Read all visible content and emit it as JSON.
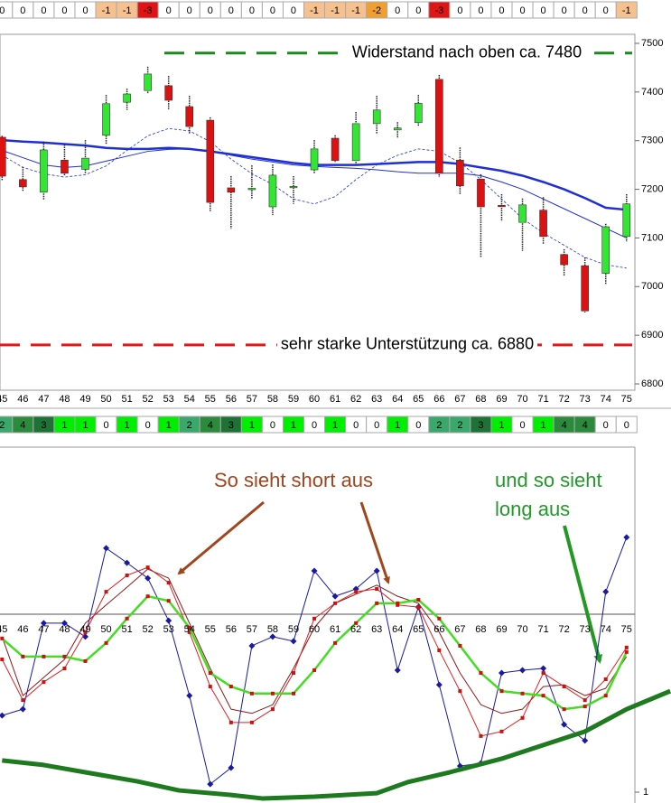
{
  "chart_data": [
    {
      "type": "heatrow",
      "values": [
        0,
        0,
        0,
        0,
        0,
        -1,
        -1,
        -3,
        0,
        0,
        0,
        0,
        0,
        0,
        0,
        -1,
        -1,
        -1,
        -2,
        0,
        0,
        -3,
        0,
        0,
        0,
        0,
        0,
        0,
        0,
        0,
        -1
      ],
      "level_colors": {
        "0": "#ffffff",
        "-1": "#f6c18e",
        "-2": "#f0a030",
        "-3": "#e01414"
      }
    },
    {
      "type": "candlestick",
      "x": [
        45,
        46,
        47,
        48,
        49,
        50,
        51,
        52,
        53,
        54,
        55,
        56,
        57,
        58,
        59,
        60,
        61,
        62,
        63,
        64,
        65,
        66,
        67,
        68,
        69,
        70,
        71,
        72,
        73,
        74,
        75
      ],
      "xlim": [
        44.9,
        75.4
      ],
      "open": [
        7307,
        7220,
        7194,
        7260,
        7241,
        7311,
        7379,
        7403,
        7413,
        7370,
        7342,
        7203,
        7200,
        7164,
        7204,
        7240,
        7305,
        7259,
        7335,
        7322,
        7337,
        7426,
        7260,
        7221,
        7167,
        7132,
        7157,
        7066,
        7043,
        7027,
        7103
      ],
      "close": [
        7227,
        7205,
        7281,
        7233,
        7264,
        7376,
        7396,
        7437,
        7383,
        7329,
        7173,
        7194,
        7202,
        7229,
        7206,
        7283,
        7259,
        7335,
        7363,
        7326,
        7377,
        7233,
        7207,
        7164,
        7165,
        7168,
        7103,
        7045,
        6950,
        7123,
        7170
      ],
      "high": [
        7310,
        7246,
        7298,
        7292,
        7301,
        7394,
        7407,
        7452,
        7433,
        7392,
        7348,
        7227,
        7249,
        7251,
        7227,
        7301,
        7311,
        7359,
        7392,
        7338,
        7394,
        7435,
        7286,
        7231,
        7190,
        7181,
        7184,
        7077,
        7060,
        7129,
        7190
      ],
      "low": [
        7218,
        7196,
        7179,
        7227,
        7233,
        7292,
        7363,
        7396,
        7363,
        7314,
        7155,
        7119,
        7181,
        7147,
        7170,
        7233,
        7255,
        7251,
        7314,
        7305,
        7329,
        7225,
        7190,
        7060,
        7134,
        7073,
        7088,
        7021,
        6947,
        7004,
        7092
      ],
      "up_color": "#33e633",
      "down_color": "#dd1111",
      "ylim": [
        6800,
        7500
      ],
      "yticks": [
        6800,
        6900,
        7000,
        7100,
        7200,
        7300,
        7400,
        7500
      ],
      "lines": [
        {
          "color": "#1f2fd6",
          "width": 2.5,
          "values": [
            7301,
            7298,
            7296,
            7293,
            7290,
            7285,
            7283,
            7283,
            7285,
            7283,
            7278,
            7272,
            7266,
            7260,
            7254,
            7250,
            7250,
            7250,
            7252,
            7254,
            7256,
            7256,
            7252,
            7245,
            7238,
            7228,
            7215,
            7200,
            7182,
            7162,
            7158
          ]
        },
        {
          "color": "#1f2fd6",
          "width": 1,
          "values": [
            7280,
            7265,
            7250,
            7245,
            7248,
            7258,
            7268,
            7278,
            7282,
            7283,
            7280,
            7270,
            7262,
            7256,
            7250,
            7247,
            7245,
            7243,
            7240,
            7236,
            7233,
            7233,
            7233,
            7228,
            7215,
            7200,
            7180,
            7160,
            7140,
            7120,
            7100
          ]
        },
        {
          "color": "#1f2fd6",
          "width": 0.8,
          "dash": true,
          "values": [
            7270,
            7245,
            7232,
            7225,
            7230,
            7248,
            7280,
            7310,
            7325,
            7320,
            7298,
            7262,
            7232,
            7210,
            7180,
            7170,
            7185,
            7220,
            7250,
            7270,
            7283,
            7278,
            7255,
            7220,
            7180,
            7140,
            7110,
            7085,
            7060,
            7045,
            7038
          ]
        }
      ],
      "annotations": [
        {
          "text": "Widerstand nach oben ca. 7480",
          "value": 7480,
          "color": "#1a8a1a"
        },
        {
          "text": "sehr starke Unterstützung ca. 6880",
          "value": 6880,
          "color": "#e01818"
        }
      ]
    },
    {
      "type": "heatrow",
      "values": [
        2,
        4,
        3,
        1,
        1,
        0,
        1,
        0,
        1,
        2,
        4,
        3,
        1,
        0,
        1,
        0,
        1,
        0,
        0,
        1,
        0,
        2,
        2,
        3,
        1,
        0,
        1,
        4,
        4,
        0,
        0
      ],
      "level_colors": {
        "0": "#ffffff",
        "1": "#00ee00",
        "2": "#3aa86a",
        "3": "#1f7236",
        "4": "#2b8a3c"
      }
    },
    {
      "type": "line",
      "x": [
        45,
        46,
        47,
        48,
        49,
        50,
        51,
        52,
        53,
        54,
        55,
        56,
        57,
        58,
        59,
        60,
        61,
        62,
        63,
        64,
        65,
        66,
        67,
        68,
        69,
        70,
        71,
        72,
        73,
        74,
        75
      ],
      "xlim": [
        44.9,
        75.4
      ],
      "ylim": [
        1,
        100
      ],
      "yticks": [
        1
      ],
      "series": [
        {
          "color": "#1a1aa0",
          "width": 1,
          "marker": "diamond",
          "values": [
            23,
            24.8,
            49.5,
            49.5,
            45.6,
            71,
            66.8,
            62.4,
            50.2,
            28.7,
            3.3,
            8,
            43,
            45.6,
            44.3,
            64.5,
            57.2,
            59.3,
            64.5,
            36,
            54.1,
            31.8,
            8.5,
            9.3,
            35.2,
            36,
            36.5,
            20.4,
            15.8,
            58.5,
            74.1
          ]
        },
        {
          "color": "#8b1a1a",
          "width": 1,
          "values": [
            45.6,
            28.7,
            33.9,
            39.1,
            49.5,
            54.7,
            59.8,
            65,
            62.4,
            49.5,
            36.5,
            24.8,
            23.6,
            26.1,
            36.5,
            48.2,
            55.2,
            57.8,
            60.4,
            57.2,
            55.2,
            46.9,
            35.2,
            26.1,
            23.6,
            24.8,
            31.3,
            31.8,
            28.7,
            30.8,
            39.9
          ]
        },
        {
          "color": "#dd2222",
          "width": 1,
          "marker": "square",
          "values": [
            39.1,
            27.4,
            32.6,
            36.5,
            46.9,
            58.5,
            63.2,
            65.5,
            61.1,
            46.9,
            31.3,
            21,
            21,
            24.8,
            35.2,
            50.8,
            55.2,
            58.5,
            59.3,
            54.7,
            54.1,
            41.7,
            30,
            17.1,
            18.4,
            22.3,
            35.2,
            31.3,
            27.4,
            33.4,
            42.5
          ]
        },
        {
          "color": "#44dd22",
          "width": 2.5,
          "marker": "square",
          "values": [
            45.1,
            39.9,
            39.9,
            39.9,
            38.6,
            43.8,
            50.8,
            57.2,
            55.9,
            48.2,
            35.2,
            31.3,
            29.3,
            29.3,
            29.3,
            36,
            43.8,
            49.5,
            55.2,
            55.2,
            56.2,
            50.8,
            43,
            35.2,
            30,
            29.3,
            28.7,
            24.8,
            25.6,
            28.7,
            41.2
          ]
        },
        {
          "color": "#1e7a1e",
          "width": 5,
          "x": [
            45,
            47,
            49,
            51.5,
            53.5,
            56,
            57.5,
            60,
            63,
            64.5,
            66.5,
            69,
            71,
            73,
            75,
            77.1
          ],
          "values": [
            10.1,
            8.8,
            6.7,
            4.1,
            1.5,
            0.2,
            -0.8,
            -0.3,
            0.7,
            3.9,
            6.7,
            10.6,
            14.5,
            18.4,
            24.8,
            30
          ]
        }
      ],
      "annotations": [
        {
          "lines": [
            "So sieht short aus"
          ],
          "color": "#a0461e"
        },
        {
          "lines": [
            "und so sieht",
            "long aus"
          ],
          "color": "#22992a"
        }
      ]
    }
  ]
}
